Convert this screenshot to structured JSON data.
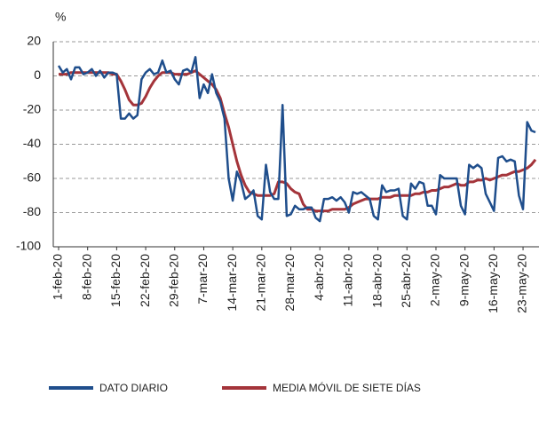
{
  "chart_data": {
    "type": "line",
    "y_unit": "%",
    "categories": [
      "1-feb-20",
      null,
      null,
      null,
      null,
      null,
      null,
      "8-feb-20",
      null,
      null,
      null,
      null,
      null,
      null,
      "15-feb-20",
      null,
      null,
      null,
      null,
      null,
      null,
      "22-feb-20",
      null,
      null,
      null,
      null,
      null,
      null,
      "29-feb-20",
      null,
      null,
      null,
      null,
      null,
      null,
      "7-mar-20",
      null,
      null,
      null,
      null,
      null,
      null,
      "14-mar-20",
      null,
      null,
      null,
      null,
      null,
      null,
      "21-mar-20",
      null,
      null,
      null,
      null,
      null,
      null,
      "28-mar-20",
      null,
      null,
      null,
      null,
      null,
      null,
      "4-abr-20",
      null,
      null,
      null,
      null,
      null,
      null,
      "11-abr-20",
      null,
      null,
      null,
      null,
      null,
      null,
      "18-abr-20",
      null,
      null,
      null,
      null,
      null,
      null,
      "25-abr-20",
      null,
      null,
      null,
      null,
      null,
      null,
      "2-may-20",
      null,
      null,
      null,
      null,
      null,
      null,
      "9-may-20",
      null,
      null,
      null,
      null,
      null,
      null,
      "16-may-20",
      null,
      null,
      null,
      null,
      null,
      null,
      "23-may-20",
      null,
      null,
      null
    ],
    "series": [
      {
        "name": "DATO DIARIO",
        "color": "#1f4e8c",
        "values": [
          6,
          2,
          4,
          -2,
          5,
          5,
          1,
          2,
          4,
          0,
          3,
          -1,
          2,
          2,
          1,
          -25,
          -25,
          -22,
          -25,
          -23,
          -2,
          2,
          4,
          1,
          2,
          9,
          2,
          3,
          -2,
          -5,
          3,
          4,
          2,
          11,
          -13,
          -5,
          -10,
          1,
          -10,
          -15,
          -25,
          -60,
          -73,
          -56,
          -62,
          -72,
          -70,
          -67,
          -82,
          -84,
          -52,
          -68,
          -72,
          -72,
          -17,
          -82,
          -81,
          -76,
          -78,
          -78,
          -77,
          -77,
          -83,
          -85,
          -72,
          -72,
          -71,
          -73,
          -71,
          -74,
          -80,
          -68,
          -69,
          -68,
          -70,
          -72,
          -82,
          -84,
          -64,
          -68,
          -67,
          -67,
          -66,
          -82,
          -84,
          -63,
          -66,
          -62,
          -63,
          -76,
          -76,
          -81,
          -58,
          -60,
          -60,
          -60,
          -60,
          -76,
          -81,
          -52,
          -54,
          -52,
          -54,
          -69,
          -74,
          -79,
          -48,
          -47,
          -50,
          -49,
          -50,
          -70,
          -78,
          -27,
          -32,
          -33
        ]
      },
      {
        "name": "MEDIA MÓVIL DE SIETE DÍAS",
        "color": "#a4343a",
        "values": [
          1,
          1,
          1,
          2,
          2,
          2,
          2,
          2,
          2,
          2,
          2,
          2,
          2,
          1,
          1,
          -3,
          -8,
          -14,
          -17,
          -17,
          -16,
          -12,
          -7,
          -3,
          0,
          2,
          2,
          2,
          1,
          1,
          1,
          1,
          2,
          3,
          1,
          -1,
          -3,
          -5,
          -8,
          -13,
          -22,
          -30,
          -40,
          -50,
          -58,
          -64,
          -68,
          -69,
          -70,
          -70,
          -70,
          -70,
          -69,
          -62,
          -62,
          -63,
          -66,
          -68,
          -69,
          -75,
          -78,
          -78,
          -79,
          -79,
          -79,
          -79,
          -78,
          -78,
          -78,
          -78,
          -77,
          -75,
          -74,
          -73,
          -72,
          -72,
          -72,
          -72,
          -71,
          -71,
          -71,
          -70,
          -70,
          -70,
          -70,
          -70,
          -69,
          -69,
          -68,
          -68,
          -67,
          -67,
          -66,
          -65,
          -65,
          -64,
          -63,
          -64,
          -64,
          -62,
          -62,
          -61,
          -61,
          -60,
          -61,
          -60,
          -59,
          -58,
          -58,
          -57,
          -56,
          -56,
          -55,
          -54,
          -52,
          -49
        ]
      }
    ],
    "ylim": [
      -100,
      20
    ],
    "yticks": [
      -100,
      -80,
      -60,
      -40,
      -20,
      0,
      20
    ],
    "grid": true,
    "legend": "bottom"
  }
}
